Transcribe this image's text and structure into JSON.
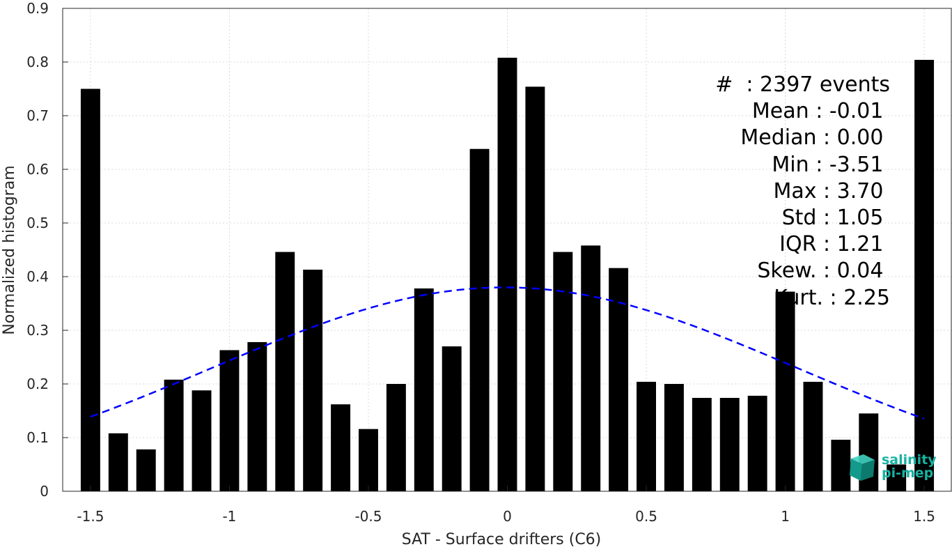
{
  "chart_data": {
    "type": "bar",
    "xlabel": "SAT - Surface drifters (C6)",
    "ylabel": "Normalized histogram",
    "xlim": [
      -1.6,
      1.6
    ],
    "ylim": [
      0,
      0.9
    ],
    "grid": true,
    "bin_width": 0.1,
    "x": [
      -1.5,
      -1.4,
      -1.3,
      -1.2,
      -1.1,
      -1.0,
      -0.9,
      -0.8,
      -0.7,
      -0.6,
      -0.5,
      -0.4,
      -0.3,
      -0.2,
      -0.1,
      0.0,
      0.1,
      0.2,
      0.3,
      0.4,
      0.5,
      0.6,
      0.7,
      0.8,
      0.9,
      1.0,
      1.1,
      1.2,
      1.3,
      1.4,
      1.5
    ],
    "values": [
      0.75,
      0.108,
      0.078,
      0.208,
      0.188,
      0.263,
      0.278,
      0.446,
      0.413,
      0.162,
      0.116,
      0.2,
      0.378,
      0.27,
      0.638,
      0.808,
      0.754,
      0.446,
      0.458,
      0.416,
      0.204,
      0.2,
      0.174,
      0.174,
      0.178,
      0.372,
      0.204,
      0.096,
      0.145,
      0.05,
      0.804
    ],
    "bar_color": "#000000",
    "fit_curve": {
      "style": "dashed",
      "color": "#0000ff",
      "mean": -0.01,
      "std": 1.05,
      "x_range": [
        -1.5,
        1.5
      ]
    },
    "xticks": [
      {
        "v": -1.5,
        "label": "-1.5"
      },
      {
        "v": -1.0,
        "label": "-1"
      },
      {
        "v": -0.5,
        "label": "-0.5"
      },
      {
        "v": 0.0,
        "label": "0"
      },
      {
        "v": 0.5,
        "label": "0.5"
      },
      {
        "v": 1.0,
        "label": "1"
      },
      {
        "v": 1.5,
        "label": "1.5"
      }
    ],
    "yticks": [
      {
        "v": 0,
        "label": "0"
      },
      {
        "v": 0.1,
        "label": "0.1"
      },
      {
        "v": 0.2,
        "label": "0.2"
      },
      {
        "v": 0.3,
        "label": "0.3"
      },
      {
        "v": 0.4,
        "label": "0.4"
      },
      {
        "v": 0.5,
        "label": "0.5"
      },
      {
        "v": 0.6,
        "label": "0.6"
      },
      {
        "v": 0.7,
        "label": "0.7"
      },
      {
        "v": 0.8,
        "label": "0.8"
      },
      {
        "v": 0.9,
        "label": "0.9"
      }
    ],
    "annotations": [
      "#  : 2397 events",
      "Mean : -0.01 ",
      "Median : 0.00 ",
      "Min : -3.51 ",
      "Max : 3.70 ",
      "Std : 1.05 ",
      "IQR : 1.21 ",
      "Skew. : 0.04 ",
      "Kurt. : 2.25"
    ]
  },
  "logo": {
    "line1": "salinity",
    "line2": "pi-mep",
    "icon": "salinity-cube-icon",
    "color": "#16b3a3"
  }
}
